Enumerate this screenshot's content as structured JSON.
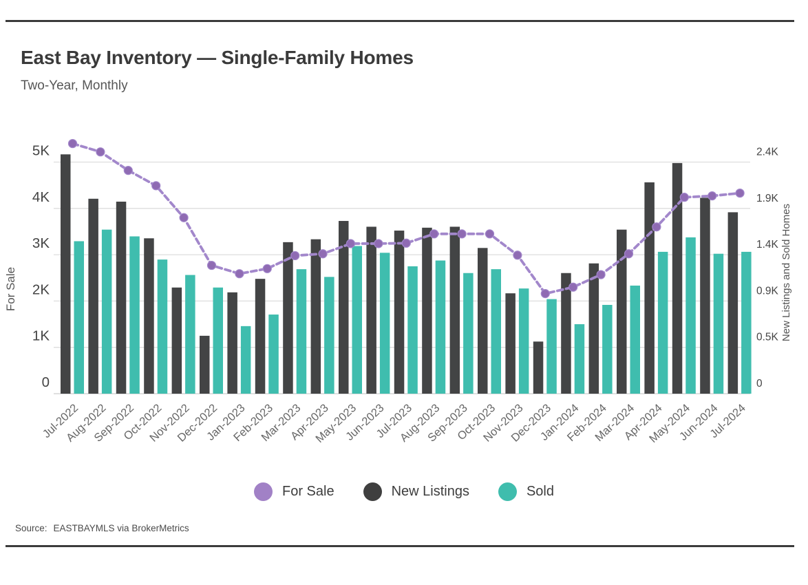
{
  "page": {
    "title": "East Bay Inventory — Single-Family Homes",
    "subtitle": "Two-Year, Monthly",
    "source_prefix": "Source:",
    "source_text": "EASTBAYMLS via BrokerMetrics"
  },
  "colors": {
    "for_sale_line": "#a287cb",
    "for_sale_marker": "#8f6bb3",
    "new_listings_bar": "#434445",
    "sold_bar": "#3fbdae",
    "gridline": "#dddddd",
    "baseline": "#cccccc",
    "tick_text": "#454545",
    "axis_title_text": "#555555",
    "x_label_text": "#666666",
    "divider": "#3b3b3b"
  },
  "chart_data": {
    "type": "bar",
    "subtype": "grouped bars with overlaid dashed line (dual axis combo)",
    "grid": "horizontal gridlines on",
    "legend_position": "bottom-center",
    "categories": [
      "Jul-2022",
      "Aug-2022",
      "Sep-2022",
      "Oct-2022",
      "Nov-2022",
      "Dec-2022",
      "Jan-2023",
      "Feb-2023",
      "Mar-2023",
      "Apr-2023",
      "May-2023",
      "Jun-2023",
      "Jul-2023",
      "Aug-2023",
      "Sep-2023",
      "Oct-2023",
      "Nov-2023",
      "Dec-2023",
      "Jan-2024",
      "Feb-2024",
      "Mar-2024",
      "Apr-2024",
      "May-2024",
      "Jun-2024",
      "Jul-2024"
    ],
    "series": [
      {
        "name": "For Sale",
        "type": "line",
        "axis": "left",
        "values": [
          5400,
          5220,
          4820,
          4490,
          3800,
          2770,
          2590,
          2700,
          2980,
          3020,
          3240,
          3240,
          3250,
          3450,
          3450,
          3450,
          2990,
          2160,
          2300,
          2570,
          3020,
          3600,
          4240,
          4270,
          4330
        ]
      },
      {
        "name": "New Listings",
        "type": "bar",
        "axis": "right",
        "values": [
          2480,
          2020,
          1990,
          1610,
          1100,
          600,
          1050,
          1190,
          1570,
          1600,
          1790,
          1730,
          1690,
          1720,
          1730,
          1510,
          1040,
          540,
          1250,
          1350,
          1700,
          2190,
          2390,
          2030,
          1880
        ]
      },
      {
        "name": "Sold",
        "type": "bar",
        "axis": "right",
        "values": [
          1580,
          1700,
          1630,
          1390,
          1230,
          1100,
          700,
          820,
          1290,
          1210,
          1530,
          1460,
          1320,
          1380,
          1250,
          1290,
          1090,
          980,
          720,
          920,
          1120,
          1470,
          1620,
          1450,
          1470
        ]
      }
    ],
    "left_axis": {
      "title": "For Sale",
      "ticks": [
        "0",
        "1K",
        "2K",
        "3K",
        "4K",
        "5K"
      ],
      "tick_values": [
        0,
        1000,
        2000,
        3000,
        4000,
        5000
      ],
      "range": [
        0,
        5600
      ]
    },
    "right_axis": {
      "title": "New Listings and Sold Homes",
      "ticks": [
        "0",
        "0.5K",
        "0.9K",
        "1.4K",
        "1.9K",
        "2.4K"
      ],
      "tick_values": [
        0,
        480,
        960,
        1440,
        1920,
        2400
      ],
      "range": [
        0,
        2688
      ]
    },
    "legend": [
      {
        "label": "For Sale",
        "color": "#a181c6"
      },
      {
        "label": "New Listings",
        "color": "#3f3f3f"
      },
      {
        "label": "Sold",
        "color": "#3fbdad"
      }
    ]
  }
}
